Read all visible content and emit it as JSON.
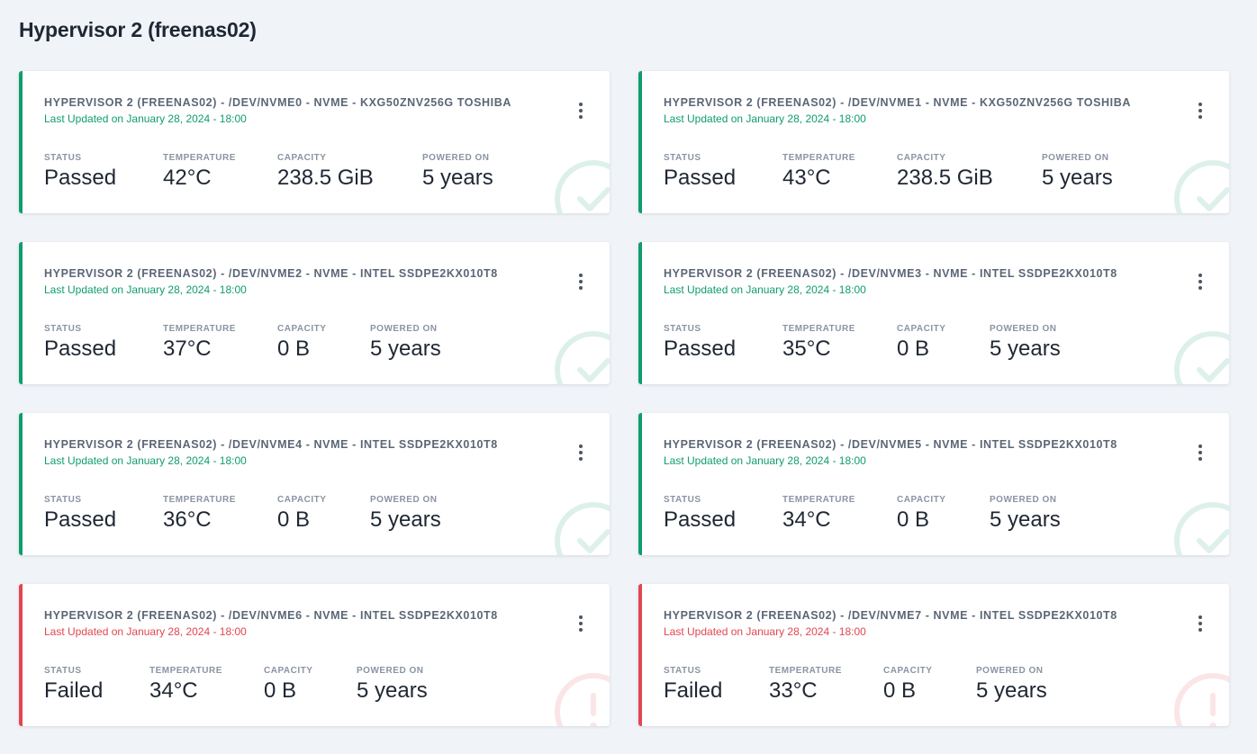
{
  "page": {
    "title": "Hypervisor 2 (freenas02)"
  },
  "labels": {
    "status": "STATUS",
    "temperature": "TEMPERATURE",
    "capacity": "CAPACITY",
    "powered_on": "POWERED ON"
  },
  "colors": {
    "passed": "#0f9d6c",
    "failed": "#e2464f"
  },
  "cards": [
    {
      "title": "HYPERVISOR 2 (FREENAS02) - /DEV/NVME0 - NVME - KXG50ZNV256G TOSHIBA",
      "updated": "Last Updated on January 28, 2024 - 18:00",
      "status": "Passed",
      "temperature": "42°C",
      "capacity": "238.5 GiB",
      "powered_on": "5 years",
      "state": "passed",
      "icon": "check-circle-icon"
    },
    {
      "title": "HYPERVISOR 2 (FREENAS02) - /DEV/NVME1 - NVME - KXG50ZNV256G TOSHIBA",
      "updated": "Last Updated on January 28, 2024 - 18:00",
      "status": "Passed",
      "temperature": "43°C",
      "capacity": "238.5 GiB",
      "powered_on": "5 years",
      "state": "passed",
      "icon": "check-circle-icon"
    },
    {
      "title": "HYPERVISOR 2 (FREENAS02) - /DEV/NVME2 - NVME - INTEL SSDPE2KX010T8",
      "updated": "Last Updated on January 28, 2024 - 18:00",
      "status": "Passed",
      "temperature": "37°C",
      "capacity": "0 B",
      "powered_on": "5 years",
      "state": "passed",
      "icon": "check-circle-icon"
    },
    {
      "title": "HYPERVISOR 2 (FREENAS02) - /DEV/NVME3 - NVME - INTEL SSDPE2KX010T8",
      "updated": "Last Updated on January 28, 2024 - 18:00",
      "status": "Passed",
      "temperature": "35°C",
      "capacity": "0 B",
      "powered_on": "5 years",
      "state": "passed",
      "icon": "check-circle-icon"
    },
    {
      "title": "HYPERVISOR 2 (FREENAS02) - /DEV/NVME4 - NVME - INTEL SSDPE2KX010T8",
      "updated": "Last Updated on January 28, 2024 - 18:00",
      "status": "Passed",
      "temperature": "36°C",
      "capacity": "0 B",
      "powered_on": "5 years",
      "state": "passed",
      "icon": "check-circle-icon"
    },
    {
      "title": "HYPERVISOR 2 (FREENAS02) - /DEV/NVME5 - NVME - INTEL SSDPE2KX010T8",
      "updated": "Last Updated on January 28, 2024 - 18:00",
      "status": "Passed",
      "temperature": "34°C",
      "capacity": "0 B",
      "powered_on": "5 years",
      "state": "passed",
      "icon": "check-circle-icon"
    },
    {
      "title": "HYPERVISOR 2 (FREENAS02) - /DEV/NVME6 - NVME - INTEL SSDPE2KX010T8",
      "updated": "Last Updated on January 28, 2024 - 18:00",
      "status": "Failed",
      "temperature": "34°C",
      "capacity": "0 B",
      "powered_on": "5 years",
      "state": "failed",
      "icon": "exclamation-circle-icon"
    },
    {
      "title": "HYPERVISOR 2 (FREENAS02) - /DEV/NVME7 - NVME - INTEL SSDPE2KX010T8",
      "updated": "Last Updated on January 28, 2024 - 18:00",
      "status": "Failed",
      "temperature": "33°C",
      "capacity": "0 B",
      "powered_on": "5 years",
      "state": "failed",
      "icon": "exclamation-circle-icon"
    }
  ]
}
